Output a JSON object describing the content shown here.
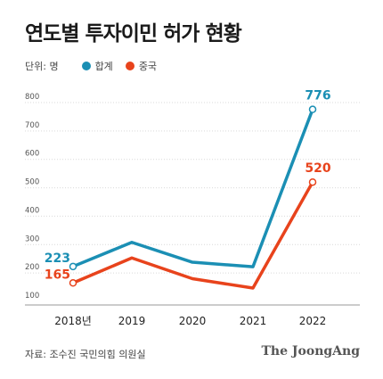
{
  "title": "연도별 투자이민 허가 현황",
  "legend": {
    "unit": "단위: 명",
    "items": [
      {
        "label": "합계",
        "color": "#1b8fb4"
      },
      {
        "label": "중국",
        "color": "#e8431c"
      }
    ]
  },
  "source": "자료: 조수진 국민의힘 의원실",
  "brand": "The JoongAng",
  "chart_data": {
    "type": "line",
    "x": [
      "2018년",
      "2019",
      "2020",
      "2021",
      "2022"
    ],
    "ylim": [
      100,
      800
    ],
    "yticks": [
      "100",
      "200",
      "300",
      "400",
      "500",
      "600",
      "700",
      "800"
    ],
    "grid": true,
    "series": [
      {
        "name": "합계",
        "color": "#1b8fb4",
        "values": [
          223,
          308,
          238,
          222,
          776
        ],
        "labels": [
          {
            "index": 0,
            "text": "223"
          },
          {
            "index": 4,
            "text": "776"
          }
        ]
      },
      {
        "name": "중국",
        "color": "#e8431c",
        "values": [
          165,
          253,
          180,
          147,
          520
        ],
        "labels": [
          {
            "index": 0,
            "text": "165"
          },
          {
            "index": 4,
            "text": "520"
          }
        ]
      }
    ]
  }
}
